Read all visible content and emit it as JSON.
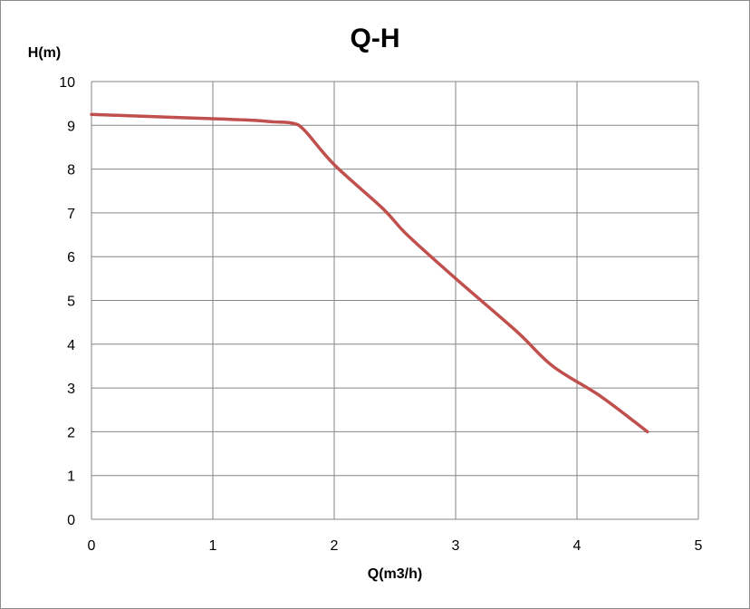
{
  "chart_data": {
    "type": "line",
    "title": "Q-H",
    "xlabel": "Q(m3/h)",
    "ylabel": "H(m)",
    "xlim": [
      0,
      5
    ],
    "ylim": [
      0,
      10
    ],
    "x_ticks": [
      "0",
      "1",
      "2",
      "3",
      "4",
      "5"
    ],
    "y_ticks": [
      "0",
      "1",
      "2",
      "3",
      "4",
      "5",
      "6",
      "7",
      "8",
      "9",
      "10"
    ],
    "grid": true,
    "legend": "none",
    "series": [
      {
        "color": "#c0504d",
        "x": [
          0,
          0.5,
          1.0,
          1.3,
          1.5,
          1.65,
          1.75,
          2.0,
          2.4,
          2.6,
          3.0,
          3.5,
          3.8,
          4.2,
          4.58
        ],
        "y": [
          9.25,
          9.2,
          9.15,
          9.12,
          9.08,
          9.05,
          8.9,
          8.1,
          7.1,
          6.5,
          5.5,
          4.3,
          3.5,
          2.8,
          2.0
        ]
      }
    ]
  }
}
